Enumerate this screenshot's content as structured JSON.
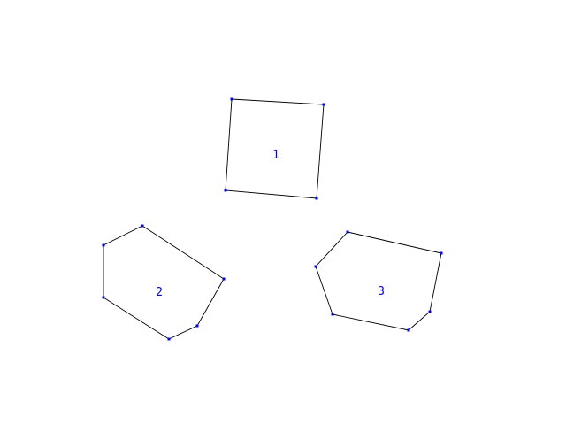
{
  "colors": {
    "background": "#ffffff",
    "edge": "#000000",
    "vertex": "#0000ff",
    "label": "#0000ff"
  },
  "polygons": [
    {
      "id": "polygon-1",
      "label": "1"
    },
    {
      "id": "polygon-2",
      "label": "2"
    },
    {
      "id": "polygon-3",
      "label": "3"
    }
  ]
}
